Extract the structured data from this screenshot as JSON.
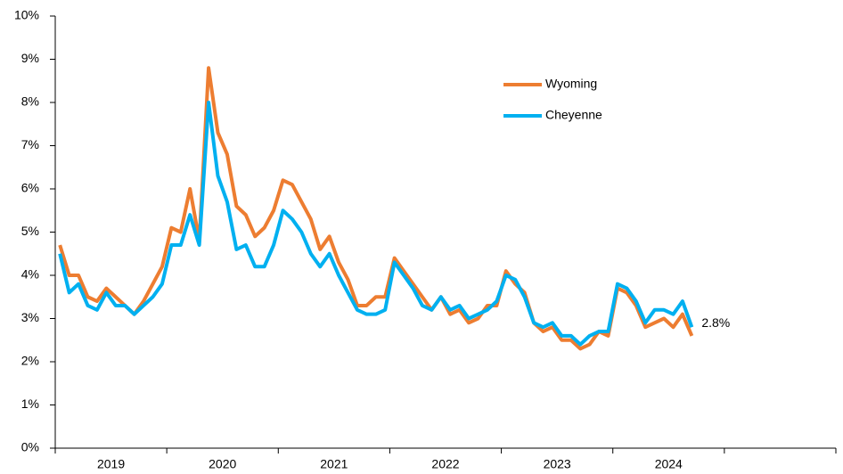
{
  "chart_data": {
    "type": "line",
    "year_labels": [
      "2019",
      "2020",
      "2021",
      "2022",
      "2023",
      "2024"
    ],
    "series": [
      {
        "name": "Wyoming",
        "color": "#ED7D31",
        "values": [
          4.7,
          4.0,
          4.0,
          3.5,
          3.4,
          3.7,
          3.5,
          3.3,
          3.1,
          3.4,
          3.8,
          4.2,
          5.1,
          5.0,
          6.0,
          4.8,
          8.8,
          7.3,
          6.8,
          5.6,
          5.4,
          4.9,
          5.1,
          5.5,
          6.2,
          6.1,
          5.7,
          5.3,
          4.6,
          4.9,
          4.3,
          3.9,
          3.3,
          3.3,
          3.5,
          3.5,
          4.4,
          4.1,
          3.8,
          3.5,
          3.2,
          3.5,
          3.1,
          3.2,
          2.9,
          3.0,
          3.3,
          3.3,
          4.1,
          3.8,
          3.6,
          2.9,
          2.7,
          2.8,
          2.5,
          2.5,
          2.3,
          2.4,
          2.7,
          2.6,
          3.7,
          3.6,
          3.3,
          2.8,
          2.9,
          3.0,
          2.8,
          3.1,
          2.6
        ]
      },
      {
        "name": "Cheyenne",
        "color": "#00B0F0",
        "values": [
          4.5,
          3.6,
          3.8,
          3.3,
          3.2,
          3.6,
          3.3,
          3.3,
          3.1,
          3.3,
          3.5,
          3.8,
          4.7,
          4.7,
          5.4,
          4.7,
          8.0,
          6.3,
          5.7,
          4.6,
          4.7,
          4.2,
          4.2,
          4.7,
          5.5,
          5.3,
          5.0,
          4.5,
          4.2,
          4.5,
          4.0,
          3.6,
          3.2,
          3.1,
          3.1,
          3.2,
          4.3,
          4.0,
          3.7,
          3.3,
          3.2,
          3.5,
          3.2,
          3.3,
          3.0,
          3.1,
          3.2,
          3.4,
          4.0,
          3.9,
          3.5,
          2.9,
          2.8,
          2.9,
          2.6,
          2.6,
          2.4,
          2.6,
          2.7,
          2.7,
          3.8,
          3.7,
          3.4,
          2.9,
          3.2,
          3.2,
          3.1,
          3.4,
          2.8
        ],
        "value_labels": [
          null,
          null,
          null,
          null,
          null,
          null,
          null,
          null,
          null,
          null,
          null,
          null,
          null,
          null,
          null,
          null,
          null,
          null,
          null,
          null,
          null,
          null,
          null,
          null,
          null,
          null,
          null,
          null,
          null,
          null,
          null,
          null,
          null,
          null,
          null,
          null,
          null,
          null,
          null,
          null,
          null,
          null,
          null,
          null,
          null,
          null,
          null,
          null,
          null,
          null,
          null,
          null,
          null,
          null,
          null,
          null,
          null,
          null,
          null,
          null,
          null,
          null,
          null,
          null,
          null,
          null,
          null,
          null,
          "2.8%"
        ]
      }
    ],
    "ylim": [
      0,
      10
    ],
    "yticks": [
      {
        "value": 0,
        "label": "0%"
      },
      {
        "value": 1,
        "label": "1%"
      },
      {
        "value": 2,
        "label": "2%"
      },
      {
        "value": 3,
        "label": "3%"
      },
      {
        "value": 4,
        "label": "4%"
      },
      {
        "value": 5,
        "label": "5%"
      },
      {
        "value": 6,
        "label": "6%"
      },
      {
        "value": 7,
        "label": "7%"
      },
      {
        "value": 8,
        "label": "8%"
      },
      {
        "value": 9,
        "label": "9%"
      },
      {
        "value": 10,
        "label": "10%"
      }
    ],
    "grid": false
  }
}
